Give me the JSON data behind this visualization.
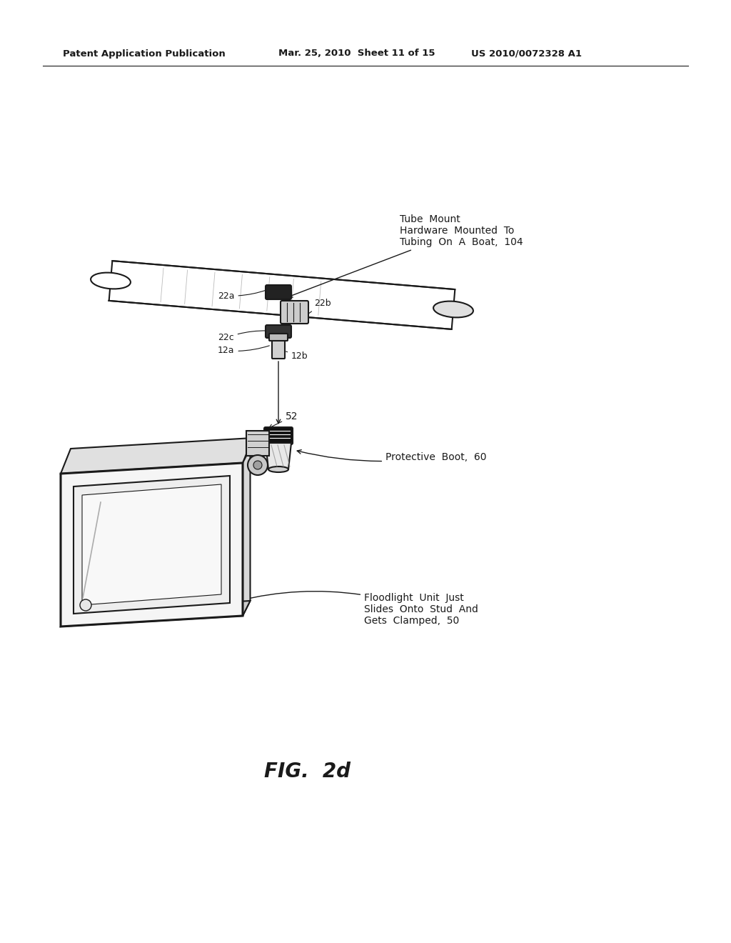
{
  "header_left": "Patent Application Publication",
  "header_mid": "Mar. 25, 2010  Sheet 11 of 15",
  "header_right": "US 2010/0072328 A1",
  "fig_caption": "FIG.  2d",
  "bg_color": "#ffffff",
  "line_color": "#1a1a1a",
  "label_tube_mount": "Tube  Mount\nHardware  Mounted  To\nTubing  On  A  Boat,  104",
  "label_boot": "Protective  Boot,  60",
  "label_floodlight": "Floodlight  Unit  Just\nSlides  Onto  Stud  And\nGets  Clamped,  50",
  "label_22a": "22a",
  "label_22b": "22b",
  "label_22c": "22c",
  "label_12a": "12a",
  "label_12b": "12b",
  "label_52": "52"
}
